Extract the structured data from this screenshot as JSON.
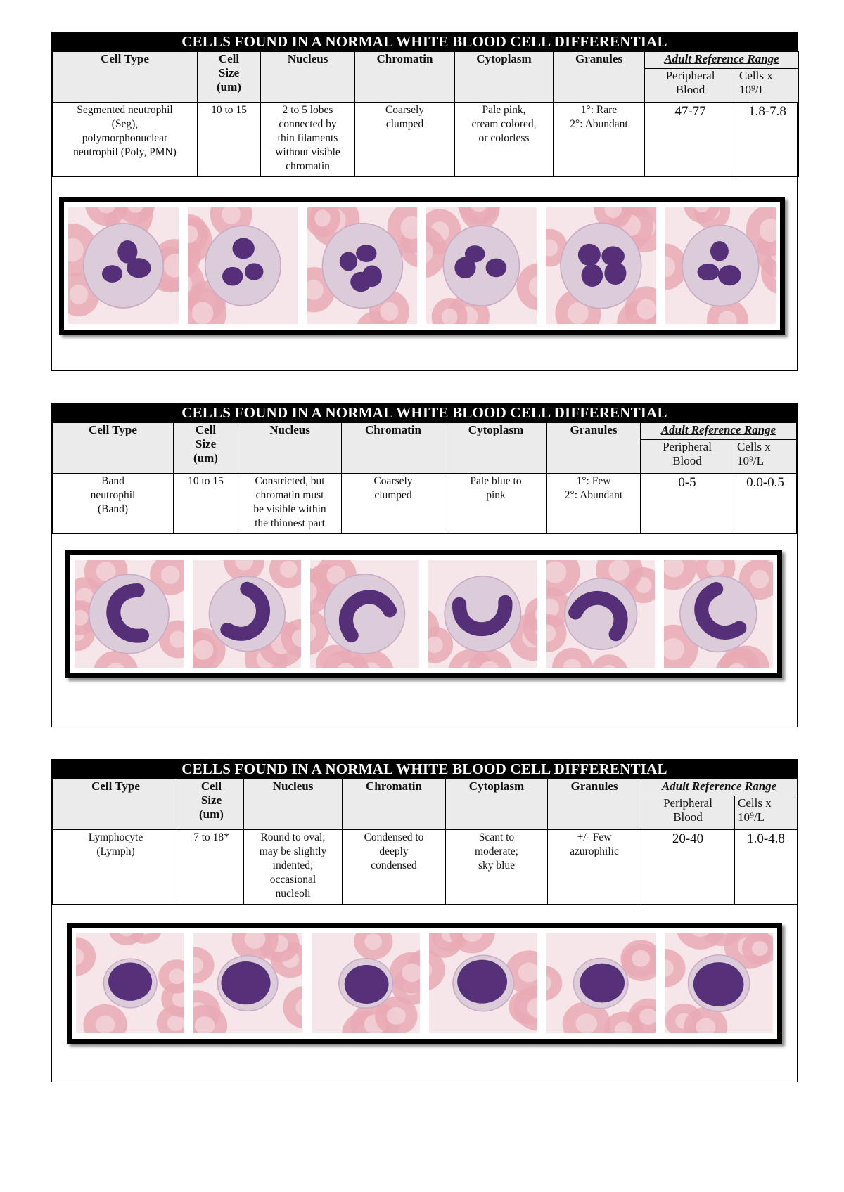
{
  "blocks": [
    {
      "title": "CELLS FOUND IN A NORMAL WHITE BLOOD CELL DIFFERENTIAL",
      "headers": {
        "cell_type": "Cell Type",
        "cell_size": [
          "Cell",
          "Size",
          "(um)"
        ],
        "nucleus": "Nucleus",
        "chromatin": "Chromatin",
        "cytoplasm": "Cytoplasm",
        "granules": "Granules",
        "adult_reference_range": "Adult Reference Range",
        "peripheral_blood": [
          "Peripheral",
          "Blood"
        ],
        "cells_unit": [
          "Cells x",
          "10⁹/L"
        ]
      },
      "row": {
        "cell_type": [
          "Segmented neutrophil",
          "(Seg),",
          "polymorphonuclear",
          "neutrophil (Poly, PMN)"
        ],
        "cell_size": "10 to 15",
        "nucleus": [
          "2 to 5 lobes",
          "connected by",
          "thin filaments",
          "without visible",
          "chromatin"
        ],
        "chromatin": [
          "Coarsely",
          "clumped"
        ],
        "cytoplasm": [
          "Pale pink,",
          "cream colored,",
          "or colorless"
        ],
        "granules": [
          "1°: Rare",
          "2°: Abundant"
        ],
        "peripheral_blood": "47-77",
        "cells_count": "1.8-7.8"
      },
      "images": [
        "segmented-neutrophil-1",
        "segmented-neutrophil-2",
        "segmented-neutrophil-3",
        "segmented-neutrophil-4",
        "segmented-neutrophil-5",
        "segmented-neutrophil-6"
      ]
    },
    {
      "title": "CELLS FOUND IN A NORMAL WHITE BLOOD CELL DIFFERENTIAL",
      "headers": {
        "cell_type": "Cell Type",
        "cell_size": [
          "Cell",
          "Size",
          "(um)"
        ],
        "nucleus": "Nucleus",
        "chromatin": "Chromatin",
        "cytoplasm": "Cytoplasm",
        "granules": "Granules",
        "adult_reference_range": "Adult Reference Range",
        "peripheral_blood": [
          "Peripheral",
          "Blood"
        ],
        "cells_unit": [
          "Cells x",
          "10⁹/L"
        ]
      },
      "row": {
        "cell_type": [
          "Band",
          "neutrophil",
          "(Band)"
        ],
        "cell_size": "10 to 15",
        "nucleus": [
          "Constricted, but",
          "chromatin must",
          "be visible within",
          "the thinnest part"
        ],
        "chromatin": [
          "Coarsely",
          "clumped"
        ],
        "cytoplasm": [
          "Pale blue to",
          "pink"
        ],
        "granules": [
          "1°: Few",
          "2°: Abundant"
        ],
        "peripheral_blood": "0-5",
        "cells_count": "0.0-0.5"
      },
      "images": [
        "band-neutrophil-1",
        "band-neutrophil-2",
        "band-neutrophil-3",
        "band-neutrophil-4",
        "band-neutrophil-5",
        "band-neutrophil-6"
      ]
    },
    {
      "title": "CELLS FOUND IN A NORMAL WHITE BLOOD CELL DIFFERENTIAL",
      "headers": {
        "cell_type": "Cell Type",
        "cell_size": [
          "Cell",
          "Size",
          "(um)"
        ],
        "nucleus": "Nucleus",
        "chromatin": "Chromatin",
        "cytoplasm": "Cytoplasm",
        "granules": "Granules",
        "adult_reference_range": "Adult Reference Range",
        "peripheral_blood": [
          "Peripheral",
          "Blood"
        ],
        "cells_unit": [
          "Cells x",
          "10⁹/L"
        ]
      },
      "row": {
        "cell_type": [
          "Lymphocyte",
          "(Lymph)"
        ],
        "cell_size": "7 to 18*",
        "nucleus": [
          "Round to oval;",
          "may be slightly",
          "indented;",
          "occasional",
          "nucleoli"
        ],
        "chromatin": [
          "Condensed to",
          "deeply",
          "condensed"
        ],
        "cytoplasm": [
          "Scant to",
          "moderate;",
          "sky blue"
        ],
        "granules": [
          "+/- Few",
          "azurophilic"
        ],
        "peripheral_blood": "20-40",
        "cells_count": "1.0-4.8"
      },
      "images": [
        "lymphocyte-1",
        "lymphocyte-2",
        "lymphocyte-3",
        "lymphocyte-4",
        "lymphocyte-5",
        "lymphocyte-6"
      ]
    }
  ],
  "colors": {
    "title_bar": "#000000",
    "header_bg": "#ebebeb",
    "rbc": "#e9a9b4",
    "cytoplasm": "#dccbd8",
    "nucleus": "#4a2370",
    "background_slide": "#f6e6ea"
  }
}
